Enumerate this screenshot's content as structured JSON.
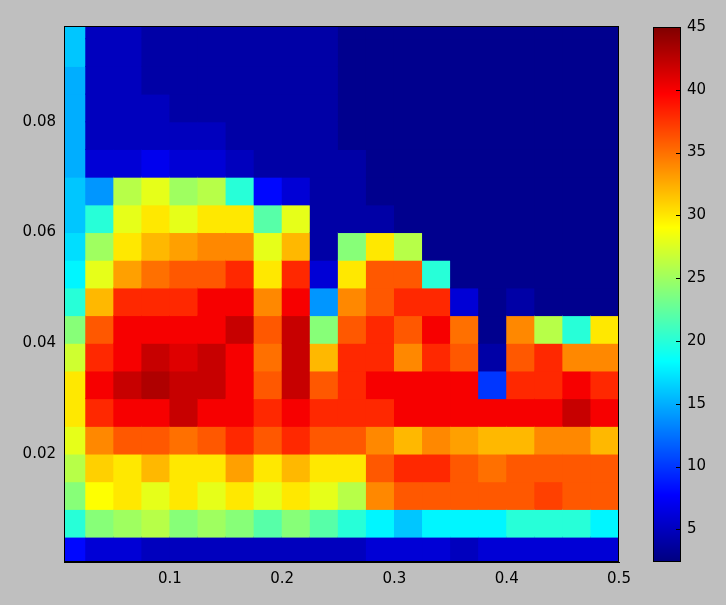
{
  "chart_data": {
    "type": "heatmap",
    "color": "jet",
    "grid": false,
    "xlim": [
      0.0056,
      0.5
    ],
    "ylim": [
      0.0005,
      0.0973
    ],
    "xticks": [
      0.1,
      0.2,
      0.3,
      0.4,
      0.5
    ],
    "yticks": [
      0.02,
      0.04,
      0.06,
      0.08
    ],
    "x_edges": [
      0.0056,
      0.025,
      0.05,
      0.075,
      0.1,
      0.125,
      0.15,
      0.175,
      0.2,
      0.225,
      0.25,
      0.275,
      0.3,
      0.325,
      0.35,
      0.375,
      0.4,
      0.425,
      0.45,
      0.475,
      0.5
    ],
    "y_edges": [
      0.0005,
      0.005,
      0.01,
      0.015,
      0.02,
      0.025,
      0.03,
      0.035,
      0.04,
      0.045,
      0.05,
      0.055,
      0.06,
      0.065,
      0.07,
      0.075,
      0.08,
      0.085,
      0.09,
      0.095,
      0.0973
    ],
    "cells": [
      [
        8,
        20,
        24,
        26,
        28,
        30,
        30,
        27,
        24,
        20,
        18,
        17,
        16,
        16,
        15,
        15,
        15,
        15,
        16,
        16
      ],
      [
        6,
        24,
        29,
        31,
        34,
        38,
        40,
        38,
        36,
        32,
        28,
        25,
        20,
        14,
        6,
        5,
        5,
        5,
        5,
        5
      ],
      [
        6,
        25,
        30,
        30,
        36,
        40,
        42,
        40,
        40,
        38,
        33,
        30,
        28,
        26,
        6,
        5,
        5,
        5,
        5,
        5
      ],
      [
        5,
        26,
        28,
        32,
        36,
        40,
        43,
        42,
        40,
        38,
        35,
        32,
        30,
        28,
        7,
        5,
        5,
        4,
        4,
        4
      ],
      [
        5,
        24,
        30,
        30,
        35,
        42,
        42,
        41,
        40,
        38,
        36,
        33,
        28,
        25,
        6,
        5,
        4,
        4,
        4,
        4
      ],
      [
        5,
        25,
        28,
        30,
        36,
        40,
        42,
        42,
        40,
        40,
        36,
        34,
        30,
        26,
        6,
        5,
        4,
        4,
        4,
        4
      ],
      [
        5,
        24,
        30,
        33,
        38,
        40,
        40,
        40,
        42,
        40,
        38,
        34,
        30,
        20,
        5,
        4,
        4,
        4,
        4,
        4
      ],
      [
        5,
        22,
        28,
        30,
        36,
        38,
        36,
        35,
        36,
        34,
        30,
        28,
        22,
        8,
        4,
        4,
        4,
        4,
        4,
        4
      ],
      [
        5,
        24,
        30,
        32,
        38,
        40,
        42,
        42,
        42,
        40,
        38,
        32,
        28,
        6,
        4,
        4,
        4,
        4,
        4,
        4
      ],
      [
        5,
        22,
        28,
        30,
        36,
        38,
        36,
        32,
        24,
        14,
        6,
        4,
        4,
        4,
        4,
        4,
        4,
        4,
        4,
        4
      ],
      [
        5,
        20,
        26,
        30,
        36,
        38,
        38,
        38,
        36,
        34,
        30,
        24,
        4,
        4,
        4,
        3,
        3,
        3,
        3,
        3
      ],
      [
        6,
        18,
        34,
        36,
        34,
        38,
        40,
        38,
        38,
        36,
        36,
        30,
        4,
        3,
        3,
        3,
        3,
        3,
        3,
        3
      ],
      [
        6,
        16,
        36,
        38,
        32,
        40,
        40,
        34,
        36,
        38,
        36,
        26,
        3,
        3,
        3,
        3,
        3,
        3,
        3,
        3
      ],
      [
        6,
        18,
        36,
        38,
        34,
        40,
        40,
        38,
        40,
        38,
        20,
        3,
        3,
        3,
        3,
        3,
        3,
        3,
        3,
        3
      ],
      [
        5,
        18,
        36,
        36,
        33,
        40,
        40,
        36,
        35,
        6,
        3,
        3,
        3,
        3,
        3,
        3,
        3,
        3,
        3,
        3
      ],
      [
        6,
        18,
        36,
        35,
        32,
        40,
        10,
        4,
        3,
        3,
        3,
        3,
        3,
        3,
        3,
        3,
        3,
        3,
        3,
        3
      ],
      [
        6,
        20,
        36,
        36,
        32,
        40,
        38,
        36,
        34,
        4,
        3,
        3,
        3,
        3,
        3,
        3,
        3,
        3,
        3,
        3
      ],
      [
        6,
        20,
        37,
        36,
        34,
        40,
        38,
        38,
        26,
        3,
        3,
        3,
        3,
        3,
        3,
        3,
        3,
        3,
        3,
        3
      ],
      [
        6,
        20,
        36,
        36,
        34,
        42,
        40,
        34,
        20,
        3,
        3,
        3,
        3,
        3,
        3,
        3,
        3,
        3,
        3,
        3
      ],
      [
        6,
        18,
        36,
        36,
        32,
        40,
        38,
        34,
        30,
        3,
        3,
        3,
        3,
        3,
        3,
        3,
        3,
        3,
        3,
        3
      ]
    ],
    "colorbar": {
      "range": [
        2.4,
        45
      ],
      "ticks": [
        5,
        10,
        15,
        20,
        25,
        30,
        35,
        40,
        45
      ]
    }
  }
}
